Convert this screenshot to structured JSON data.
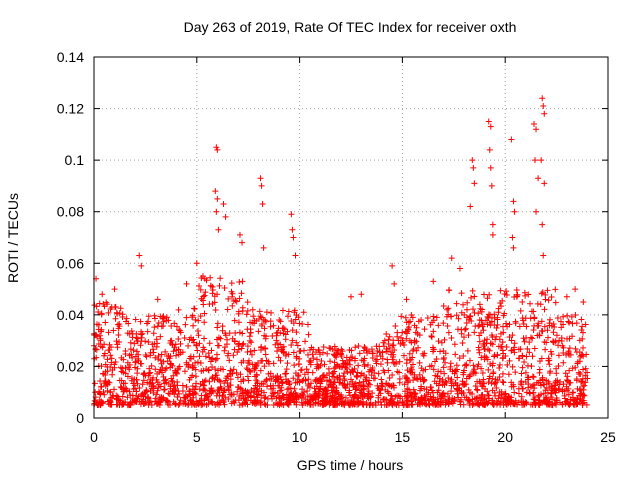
{
  "chart_data": {
    "type": "scatter",
    "title": "Day 263 of 2019, Rate Of TEC Index for receiver oxth",
    "xlabel": "GPS time / hours",
    "ylabel": "ROTI / TECUs",
    "xlim": [
      0,
      25
    ],
    "ylim": [
      0,
      0.14
    ],
    "x_ticks": [
      0,
      5,
      10,
      15,
      20,
      25
    ],
    "x_tick_labels": [
      "0",
      "5",
      "10",
      "15",
      "20",
      "25"
    ],
    "y_ticks": [
      0,
      0.02,
      0.04,
      0.06,
      0.08,
      0.1,
      0.12,
      0.14
    ],
    "y_tick_labels": [
      "0",
      "0.02",
      "0.04",
      "0.06",
      "0.08",
      "0.1",
      "0.12",
      "0.14"
    ],
    "grid": true,
    "marker": "+",
    "marker_color": "#ff0000",
    "series": [
      {
        "name": "ROTI",
        "x_range": [
          0,
          24
        ],
        "baseline_band": [
          0.005,
          0.03
        ],
        "notable_points": [
          {
            "x": 0.1,
            "y": 0.054
          },
          {
            "x": 0.4,
            "y": 0.048
          },
          {
            "x": 1.0,
            "y": 0.05
          },
          {
            "x": 2.2,
            "y": 0.063
          },
          {
            "x": 2.3,
            "y": 0.059
          },
          {
            "x": 3.1,
            "y": 0.046
          },
          {
            "x": 4.5,
            "y": 0.052
          },
          {
            "x": 5.0,
            "y": 0.06
          },
          {
            "x": 5.3,
            "y": 0.055
          },
          {
            "x": 5.95,
            "y": 0.105
          },
          {
            "x": 6.0,
            "y": 0.104
          },
          {
            "x": 5.9,
            "y": 0.088
          },
          {
            "x": 6.0,
            "y": 0.085
          },
          {
            "x": 5.95,
            "y": 0.08
          },
          {
            "x": 6.05,
            "y": 0.073
          },
          {
            "x": 6.3,
            "y": 0.083
          },
          {
            "x": 6.4,
            "y": 0.078
          },
          {
            "x": 7.1,
            "y": 0.071
          },
          {
            "x": 7.2,
            "y": 0.068
          },
          {
            "x": 8.1,
            "y": 0.093
          },
          {
            "x": 8.15,
            "y": 0.09
          },
          {
            "x": 8.2,
            "y": 0.083
          },
          {
            "x": 8.25,
            "y": 0.066
          },
          {
            "x": 9.6,
            "y": 0.079
          },
          {
            "x": 9.65,
            "y": 0.073
          },
          {
            "x": 9.7,
            "y": 0.07
          },
          {
            "x": 9.8,
            "y": 0.063
          },
          {
            "x": 10.2,
            "y": 0.041
          },
          {
            "x": 12.5,
            "y": 0.047
          },
          {
            "x": 13.0,
            "y": 0.048
          },
          {
            "x": 14.5,
            "y": 0.059
          },
          {
            "x": 14.6,
            "y": 0.052
          },
          {
            "x": 15.2,
            "y": 0.046
          },
          {
            "x": 16.5,
            "y": 0.053
          },
          {
            "x": 17.4,
            "y": 0.062
          },
          {
            "x": 17.8,
            "y": 0.058
          },
          {
            "x": 18.4,
            "y": 0.1
          },
          {
            "x": 18.45,
            "y": 0.097
          },
          {
            "x": 18.5,
            "y": 0.091
          },
          {
            "x": 18.3,
            "y": 0.082
          },
          {
            "x": 19.2,
            "y": 0.115
          },
          {
            "x": 19.3,
            "y": 0.113
          },
          {
            "x": 19.25,
            "y": 0.104
          },
          {
            "x": 19.3,
            "y": 0.097
          },
          {
            "x": 19.35,
            "y": 0.09
          },
          {
            "x": 19.4,
            "y": 0.075
          },
          {
            "x": 19.4,
            "y": 0.071
          },
          {
            "x": 20.3,
            "y": 0.108
          },
          {
            "x": 20.4,
            "y": 0.084
          },
          {
            "x": 20.45,
            "y": 0.08
          },
          {
            "x": 20.35,
            "y": 0.07
          },
          {
            "x": 20.4,
            "y": 0.066
          },
          {
            "x": 21.4,
            "y": 0.114
          },
          {
            "x": 21.5,
            "y": 0.112
          },
          {
            "x": 21.45,
            "y": 0.1
          },
          {
            "x": 21.6,
            "y": 0.093
          },
          {
            "x": 21.5,
            "y": 0.08
          },
          {
            "x": 21.8,
            "y": 0.124
          },
          {
            "x": 21.85,
            "y": 0.121
          },
          {
            "x": 21.9,
            "y": 0.118
          },
          {
            "x": 21.75,
            "y": 0.1
          },
          {
            "x": 21.9,
            "y": 0.091
          },
          {
            "x": 21.8,
            "y": 0.075
          },
          {
            "x": 21.85,
            "y": 0.063
          },
          {
            "x": 23.0,
            "y": 0.047
          },
          {
            "x": 23.4,
            "y": 0.05
          },
          {
            "x": 23.8,
            "y": 0.045
          }
        ]
      }
    ]
  }
}
